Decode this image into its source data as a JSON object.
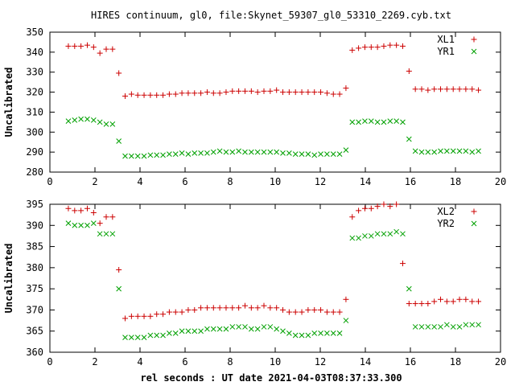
{
  "chart_data": {
    "type": "scatter",
    "title": "HIRES continuum, gl0, file:Skynet_59307_gl0_53310_2269.cyb.txt",
    "xlabel": "rel seconds : UT date 2021-04-03T08:37:33.300",
    "x": [
      0.82,
      1.1,
      1.38,
      1.66,
      1.94,
      2.22,
      2.5,
      2.78,
      3.06,
      3.34,
      3.62,
      3.9,
      4.18,
      4.46,
      4.74,
      5.02,
      5.3,
      5.58,
      5.86,
      6.14,
      6.42,
      6.7,
      6.98,
      7.26,
      7.54,
      7.82,
      8.1,
      8.38,
      8.66,
      8.94,
      9.22,
      9.5,
      9.78,
      10.06,
      10.34,
      10.62,
      10.9,
      11.18,
      11.46,
      11.74,
      12.02,
      12.3,
      12.58,
      12.86,
      13.14,
      13.42,
      13.7,
      13.98,
      14.26,
      14.54,
      14.82,
      15.1,
      15.38,
      15.66,
      15.94,
      16.22,
      16.5,
      16.78,
      17.06,
      17.34,
      17.62,
      17.9,
      18.18,
      18.46,
      18.74,
      19.02
    ],
    "panels": [
      {
        "ylabel": "Uncalibrated",
        "xlim": [
          0,
          20
        ],
        "ylim": [
          280,
          350
        ],
        "xticks": [
          0,
          2,
          4,
          6,
          8,
          10,
          12,
          14,
          16,
          18,
          20
        ],
        "yticks": [
          280,
          290,
          300,
          310,
          320,
          330,
          340,
          350
        ],
        "legend_position": "top-right",
        "series": [
          {
            "name": "XL1",
            "marker": "plus",
            "color": "#cc0000",
            "values": [
              343.0,
              343.0,
              343.0,
              343.5,
              342.5,
              339.5,
              341.5,
              341.5,
              329.5,
              318.0,
              319.0,
              318.5,
              318.5,
              318.5,
              318.5,
              318.5,
              319.0,
              319.0,
              319.5,
              319.5,
              319.5,
              319.5,
              320.0,
              319.5,
              319.5,
              320.0,
              320.5,
              320.5,
              320.5,
              320.5,
              320.0,
              320.5,
              320.5,
              321.0,
              320.0,
              320.0,
              320.0,
              320.0,
              320.0,
              320.0,
              320.0,
              319.5,
              319.0,
              319.0,
              322.0,
              341.0,
              342.0,
              342.5,
              342.5,
              342.5,
              343.0,
              343.5,
              343.5,
              343.0,
              330.5,
              321.5,
              321.5,
              321.0,
              321.5,
              321.5,
              321.5,
              321.5,
              321.5,
              321.5,
              321.5,
              321.0
            ]
          },
          {
            "name": "YR1",
            "marker": "x",
            "color": "#00a000",
            "values": [
              305.5,
              306.0,
              306.5,
              306.5,
              306.0,
              305.0,
              304.0,
              304.0,
              295.5,
              288.0,
              288.0,
              288.0,
              288.0,
              288.5,
              288.5,
              288.5,
              289.0,
              289.0,
              289.5,
              289.0,
              289.5,
              289.5,
              289.5,
              290.0,
              290.5,
              290.0,
              290.0,
              290.5,
              290.0,
              290.0,
              290.0,
              290.0,
              290.0,
              290.0,
              289.5,
              289.5,
              289.0,
              289.0,
              289.0,
              288.5,
              289.0,
              289.0,
              289.0,
              289.0,
              291.0,
              305.0,
              305.0,
              305.5,
              305.5,
              305.0,
              305.0,
              305.5,
              305.5,
              305.0,
              296.5,
              290.5,
              290.0,
              290.0,
              290.0,
              290.5,
              290.5,
              290.5,
              290.5,
              290.5,
              290.0,
              290.5
            ]
          }
        ]
      },
      {
        "ylabel": "Uncalibrated",
        "xlim": [
          0,
          20
        ],
        "ylim": [
          360,
          395
        ],
        "xticks": [
          0,
          2,
          4,
          6,
          8,
          10,
          12,
          14,
          16,
          18,
          20
        ],
        "yticks": [
          360,
          365,
          370,
          375,
          380,
          385,
          390,
          395
        ],
        "legend_position": "top-right",
        "series": [
          {
            "name": "XL2",
            "marker": "plus",
            "color": "#cc0000",
            "values": [
              394.0,
              393.5,
              393.5,
              394.0,
              393.0,
              390.5,
              392.0,
              392.0,
              379.5,
              368.0,
              368.5,
              368.5,
              368.5,
              368.5,
              369.0,
              369.0,
              369.5,
              369.5,
              369.5,
              370.0,
              370.0,
              370.5,
              370.5,
              370.5,
              370.5,
              370.5,
              370.5,
              370.5,
              371.0,
              370.5,
              370.5,
              371.0,
              370.5,
              370.5,
              370.0,
              369.5,
              369.5,
              369.5,
              370.0,
              370.0,
              370.0,
              369.5,
              369.5,
              369.5,
              372.5,
              392.0,
              393.5,
              394.0,
              394.0,
              394.5,
              395.0,
              394.5,
              395.0,
              381.0,
              371.5,
              371.5,
              371.5,
              371.5,
              372.0,
              372.5,
              372.0,
              372.0,
              372.5,
              372.5,
              372.0,
              372.0
            ]
          },
          {
            "name": "YR2",
            "marker": "x",
            "color": "#00a000",
            "values": [
              390.5,
              390.0,
              390.0,
              390.0,
              390.5,
              388.0,
              388.0,
              388.0,
              375.0,
              363.5,
              363.5,
              363.5,
              363.5,
              364.0,
              364.0,
              364.0,
              364.5,
              364.5,
              365.0,
              365.0,
              365.0,
              365.0,
              365.5,
              365.5,
              365.5,
              365.5,
              366.0,
              366.0,
              366.0,
              365.5,
              365.5,
              366.0,
              366.0,
              365.5,
              365.0,
              364.5,
              364.0,
              364.0,
              364.0,
              364.5,
              364.5,
              364.5,
              364.5,
              364.5,
              367.5,
              387.0,
              387.0,
              387.5,
              387.5,
              388.0,
              388.0,
              388.0,
              388.5,
              388.0,
              375.0,
              366.0,
              366.0,
              366.0,
              366.0,
              366.0,
              366.5,
              366.0,
              366.0,
              366.5,
              366.5,
              366.5
            ]
          }
        ]
      }
    ]
  }
}
